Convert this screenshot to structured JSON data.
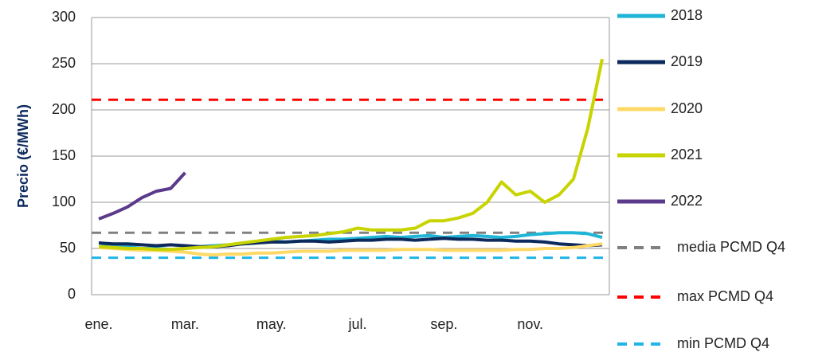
{
  "chart_data": {
    "type": "line",
    "y_label": "Precio (€/MWh)",
    "categories": [
      "ene.",
      null,
      null,
      null,
      null,
      null,
      "mar.",
      null,
      null,
      null,
      null,
      null,
      "may.",
      null,
      null,
      null,
      null,
      null,
      "jul.",
      null,
      null,
      null,
      null,
      null,
      "sep.",
      null,
      null,
      null,
      null,
      null,
      "nov.",
      null,
      null,
      null,
      null,
      null
    ],
    "series": [
      {
        "name": "2018",
        "color": "#1fb5d6",
        "values": [
          52,
          53,
          52,
          50,
          50,
          49,
          50,
          52,
          53,
          54,
          55,
          56,
          58,
          57,
          58,
          59,
          60,
          60,
          61,
          62,
          63,
          62,
          63,
          64,
          62,
          63,
          64,
          63,
          62,
          63,
          65,
          66,
          67,
          67,
          66,
          62
        ]
      },
      {
        "name": "2019",
        "color": "#0d2a5c",
        "values": [
          56,
          55,
          55,
          54,
          53,
          54,
          53,
          52,
          52,
          53,
          55,
          56,
          57,
          57,
          58,
          58,
          57,
          58,
          59,
          59,
          60,
          60,
          59,
          60,
          61,
          60,
          60,
          59,
          59,
          58,
          58,
          57,
          55,
          54,
          53,
          54
        ]
      },
      {
        "name": "2020",
        "color": "#ffd966",
        "values": [
          51,
          50,
          49,
          48,
          48,
          47,
          46,
          44,
          43,
          44,
          44,
          45,
          45,
          46,
          47,
          47,
          47,
          48,
          48,
          48,
          48,
          49,
          49,
          49,
          48,
          48,
          48,
          48,
          48,
          49,
          49,
          50,
          50,
          51,
          53,
          55
        ]
      },
      {
        "name": "2021",
        "color": "#c8d400",
        "values": [
          52,
          51,
          50,
          50,
          49,
          49,
          50,
          51,
          52,
          54,
          56,
          58,
          60,
          62,
          63,
          64,
          66,
          68,
          72,
          70,
          70,
          70,
          72,
          80,
          80,
          83,
          88,
          100,
          122,
          108,
          112,
          100,
          108,
          125,
          180,
          255
        ]
      },
      {
        "name": "2022",
        "color": "#5b3a8c",
        "values": [
          82,
          88,
          95,
          105,
          112,
          115,
          132,
          null,
          null,
          null,
          null,
          null,
          null,
          null,
          null,
          null,
          null,
          null,
          null,
          null,
          null,
          null,
          null,
          null,
          null,
          null,
          null,
          null,
          null,
          null,
          null,
          null,
          null,
          null,
          null,
          null
        ]
      }
    ],
    "reference_lines": [
      {
        "name": "media PCMD Q4",
        "color": "#808080",
        "value": 67
      },
      {
        "name": "max PCMD Q4",
        "color": "#ff0000",
        "value": 211
      },
      {
        "name": "min PCMD Q4",
        "color": "#1fb5e6",
        "value": 40
      }
    ],
    "ylim": [
      0,
      300
    ],
    "yticks": [
      0,
      50,
      100,
      150,
      200,
      250,
      300
    ],
    "grid": true
  }
}
